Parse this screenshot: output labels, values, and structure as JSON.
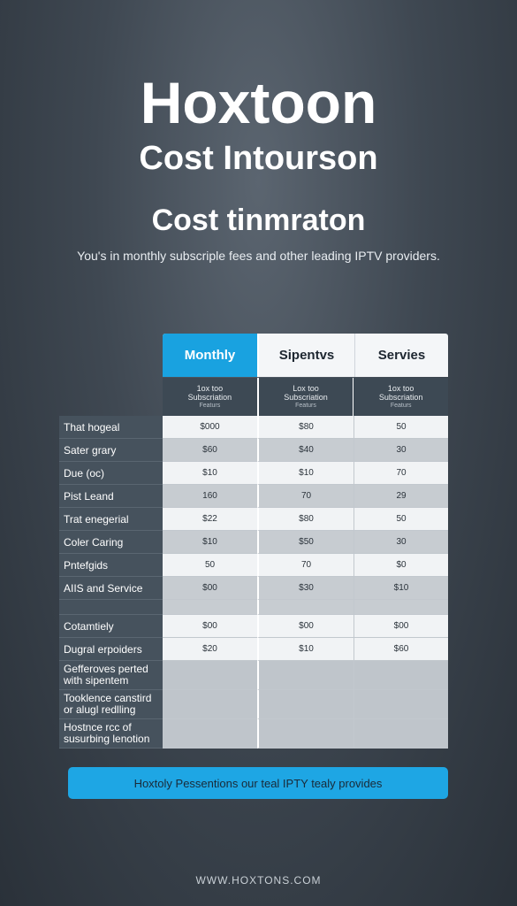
{
  "brand": "Hoxtoon",
  "subtitle": "Cost Intourson",
  "section_title": "Cost tinmraton",
  "intro": "You's in monthly subscriple fees and other leading IPTV providers.",
  "table": {
    "columns": [
      "Monthly",
      "Sipentvs",
      "Servies"
    ],
    "sub_headers": [
      {
        "line1": "1ox too",
        "line2": "Subscriation",
        "line3": "Featurs"
      },
      {
        "line1": "Lox too",
        "line2": "Subscriation",
        "line3": "Featurs"
      },
      {
        "line1": "1ox too",
        "line2": "Subscriation",
        "line3": "Featurs"
      }
    ],
    "rows": [
      {
        "label": "That hogeal",
        "values": [
          "$000",
          "$80",
          "50"
        ]
      },
      {
        "label": "Sater grary",
        "values": [
          "$60",
          "$40",
          "30"
        ]
      },
      {
        "label": "Due (oc)",
        "values": [
          "$10",
          "$10",
          "70"
        ]
      },
      {
        "label": "Pist Leand",
        "values": [
          "160",
          "70",
          "29"
        ]
      },
      {
        "label": "Trat enegerial",
        "values": [
          "$22",
          "$80",
          "50"
        ]
      },
      {
        "label": "Coler Caring",
        "values": [
          "$10",
          "$50",
          "30"
        ]
      },
      {
        "label": "Pntefgids",
        "values": [
          "50",
          "70",
          "$0"
        ]
      },
      {
        "label": "AIIS and Service",
        "values": [
          "$00",
          "$30",
          "$10"
        ]
      },
      {
        "label": "Cotamtiely",
        "values": [
          "$00",
          "$00",
          "$00"
        ]
      },
      {
        "label": "Dugral erpoiders",
        "values": [
          "$20",
          "$10",
          "$60"
        ]
      }
    ],
    "tall_rows": [
      {
        "line1": "Gefferoves perted",
        "line2": "with sipentem"
      },
      {
        "line1": "Tooklence canstird",
        "line2": "or alugl redlling"
      },
      {
        "line1": "Hostnce rcc of",
        "line2": "susurbing lenotion"
      }
    ]
  },
  "cta": "Hoxtoly Pessentions our teal IPTY tealy provides",
  "footer": "WWW.HOXTONS.COM",
  "colors": {
    "accent": "#19a2e0",
    "row_label_bg": "#46525d"
  }
}
